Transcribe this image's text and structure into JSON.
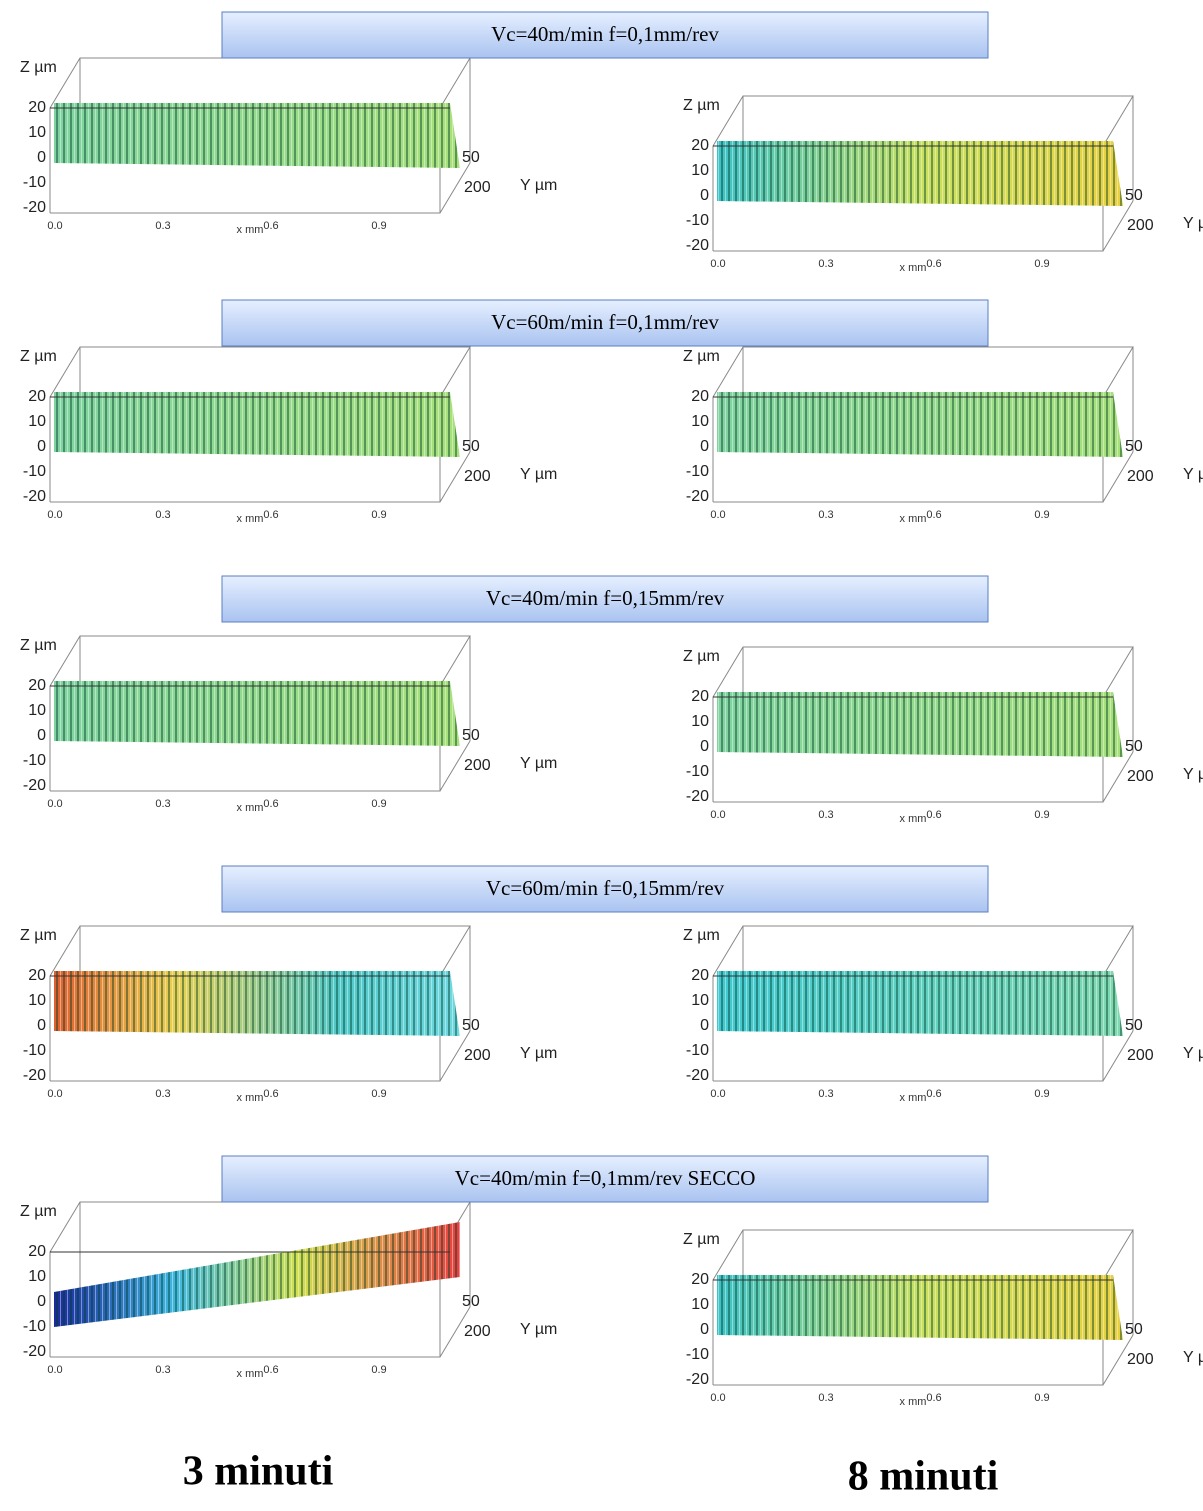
{
  "rows": [
    {
      "label": "Vc=40m/min f=0,1mm/rev"
    },
    {
      "label": "Vc=60m/min f=0,1mm/rev"
    },
    {
      "label": "Vc=40m/min f=0,15mm/rev"
    },
    {
      "label": "Vc=60m/min f=0,15mm/rev"
    },
    {
      "label": "Vc=40m/min f=0,1mm/rev SECCO"
    }
  ],
  "axis": {
    "z_label": "Z µm",
    "y_label": "Y µm",
    "x_label": "x mm",
    "z_ticks": [
      "20",
      "10",
      "0",
      "-10",
      "-20"
    ],
    "x_ticks": [
      "0.0",
      "0.3",
      "0.6",
      "0.9"
    ],
    "y_ticks": [
      "50",
      "200"
    ]
  },
  "columns": [
    "3 minuti",
    "8 minuti"
  ]
}
